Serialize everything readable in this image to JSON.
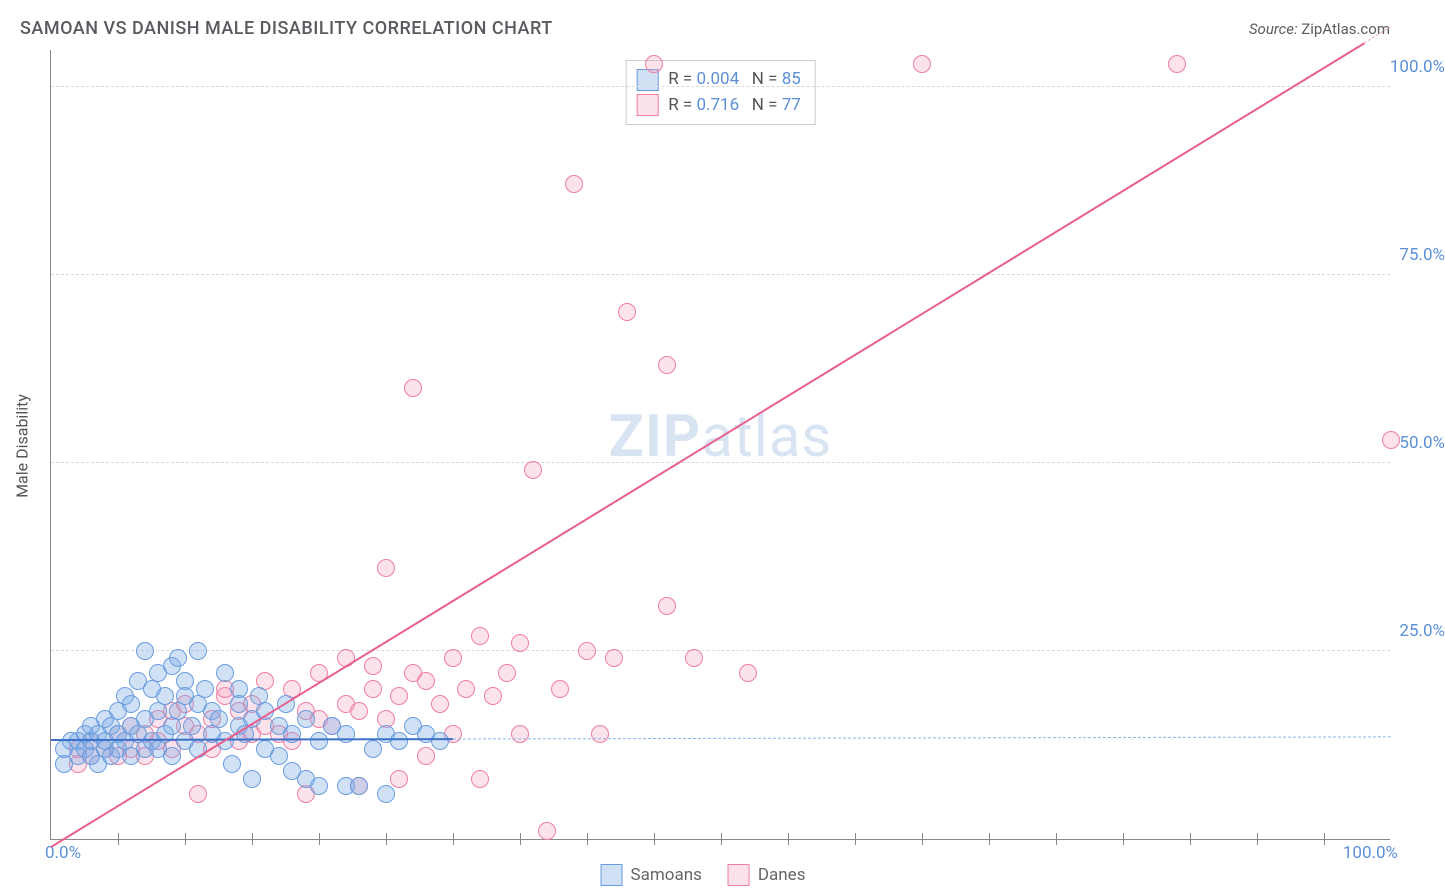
{
  "title": "SAMOAN VS DANISH MALE DISABILITY CORRELATION CHART",
  "source_label": "Source:",
  "source_value": "ZipAtlas.com",
  "y_axis_label": "Male Disability",
  "watermark_bold": "ZIP",
  "watermark_rest": "atlas",
  "chart": {
    "type": "scatter",
    "xlim": [
      0,
      100
    ],
    "ylim": [
      0,
      105
    ],
    "y_ticks": [
      25,
      50,
      75,
      100
    ],
    "y_tick_labels": [
      "25.0%",
      "50.0%",
      "75.0%",
      "100.0%"
    ],
    "x_min_label": "0.0%",
    "x_max_label": "100.0%",
    "x_minor_ticks": [
      5,
      10,
      15,
      20,
      25,
      30,
      35,
      40,
      45,
      50,
      55,
      60,
      65,
      70,
      75,
      80,
      85,
      90,
      95
    ],
    "grid_color": "#d8d8d8",
    "axis_color": "#888888",
    "background_color": "#ffffff",
    "marker_radius": 9,
    "marker_stroke_width": 1.2,
    "series": [
      {
        "name": "Samoans",
        "fill": "rgba(120,170,230,0.35)",
        "stroke": "#6a9de0",
        "r_value": "0.004",
        "n_value": "85",
        "trend": {
          "slope": 0.004,
          "intercept": 13.2,
          "x1": 0,
          "x2": 30,
          "color": "#3b72c8",
          "width": 2.5,
          "dash_ext_color": "#8cb6e8"
        },
        "points": [
          [
            1,
            10
          ],
          [
            1,
            12
          ],
          [
            1.5,
            13
          ],
          [
            2,
            11
          ],
          [
            2,
            13
          ],
          [
            2.5,
            12
          ],
          [
            2.5,
            14
          ],
          [
            3,
            11
          ],
          [
            3,
            13
          ],
          [
            3,
            15
          ],
          [
            3.5,
            10
          ],
          [
            3.5,
            14
          ],
          [
            4,
            12
          ],
          [
            4,
            13
          ],
          [
            4,
            16
          ],
          [
            4.5,
            11
          ],
          [
            4.5,
            15
          ],
          [
            5,
            12
          ],
          [
            5,
            14
          ],
          [
            5,
            17
          ],
          [
            5.5,
            19
          ],
          [
            5.5,
            13
          ],
          [
            6,
            11
          ],
          [
            6,
            15
          ],
          [
            6,
            18
          ],
          [
            6.5,
            14
          ],
          [
            6.5,
            21
          ],
          [
            7,
            12
          ],
          [
            7,
            16
          ],
          [
            7,
            25
          ],
          [
            7.5,
            13
          ],
          [
            7.5,
            20
          ],
          [
            8,
            12
          ],
          [
            8,
            17
          ],
          [
            8,
            22
          ],
          [
            8.5,
            14
          ],
          [
            8.5,
            19
          ],
          [
            9,
            11
          ],
          [
            9,
            15
          ],
          [
            9,
            23
          ],
          [
            9.5,
            17
          ],
          [
            9.5,
            24
          ],
          [
            10,
            13
          ],
          [
            10,
            19
          ],
          [
            10,
            21
          ],
          [
            10.5,
            15
          ],
          [
            11,
            12
          ],
          [
            11,
            18
          ],
          [
            11,
            25
          ],
          [
            11.5,
            20
          ],
          [
            12,
            14
          ],
          [
            12,
            17
          ],
          [
            12.5,
            16
          ],
          [
            13,
            13
          ],
          [
            13,
            22
          ],
          [
            13.5,
            10
          ],
          [
            14,
            15
          ],
          [
            14,
            18
          ],
          [
            14,
            20
          ],
          [
            14.5,
            14
          ],
          [
            15,
            8
          ],
          [
            15,
            16
          ],
          [
            15.5,
            19
          ],
          [
            16,
            12
          ],
          [
            16,
            17
          ],
          [
            17,
            11
          ],
          [
            17,
            15
          ],
          [
            17.5,
            18
          ],
          [
            18,
            9
          ],
          [
            18,
            14
          ],
          [
            19,
            8
          ],
          [
            19,
            16
          ],
          [
            20,
            7
          ],
          [
            20,
            13
          ],
          [
            21,
            15
          ],
          [
            22,
            7
          ],
          [
            22,
            14
          ],
          [
            23,
            7
          ],
          [
            24,
            12
          ],
          [
            25,
            6
          ],
          [
            25,
            14
          ],
          [
            26,
            13
          ],
          [
            27,
            15
          ],
          [
            28,
            14
          ],
          [
            29,
            13
          ]
        ]
      },
      {
        "name": "Danes",
        "fill": "rgba(245,160,185,0.30)",
        "stroke": "#ee7fa2",
        "r_value": "0.716",
        "n_value": "77",
        "trend": {
          "slope": 1.09,
          "intercept": -1,
          "x1": 0,
          "x2": 98,
          "color": "#e85f8d",
          "width": 2.5,
          "dash_ext_color": "#f3a7c1"
        },
        "points": [
          [
            2,
            10
          ],
          [
            2,
            12
          ],
          [
            3,
            11
          ],
          [
            3,
            13
          ],
          [
            4,
            12
          ],
          [
            5,
            11
          ],
          [
            5,
            14
          ],
          [
            6,
            12
          ],
          [
            6,
            15
          ],
          [
            7,
            11
          ],
          [
            7,
            14
          ],
          [
            8,
            13
          ],
          [
            8,
            16
          ],
          [
            9,
            12
          ],
          [
            9,
            17
          ],
          [
            10,
            15
          ],
          [
            10,
            18
          ],
          [
            11,
            6
          ],
          [
            11,
            14
          ],
          [
            12,
            12
          ],
          [
            12,
            16
          ],
          [
            13,
            19
          ],
          [
            13,
            20
          ],
          [
            14,
            13
          ],
          [
            14,
            17
          ],
          [
            15,
            14
          ],
          [
            15,
            18
          ],
          [
            16,
            15
          ],
          [
            16,
            21
          ],
          [
            17,
            14
          ],
          [
            18,
            13
          ],
          [
            18,
            20
          ],
          [
            19,
            6
          ],
          [
            19,
            17
          ],
          [
            20,
            16
          ],
          [
            20,
            22
          ],
          [
            21,
            15
          ],
          [
            22,
            18
          ],
          [
            22,
            24
          ],
          [
            23,
            7
          ],
          [
            23,
            17
          ],
          [
            24,
            20
          ],
          [
            24,
            23
          ],
          [
            25,
            16
          ],
          [
            25,
            36
          ],
          [
            26,
            8
          ],
          [
            26,
            19
          ],
          [
            27,
            22
          ],
          [
            27,
            60
          ],
          [
            28,
            11
          ],
          [
            28,
            21
          ],
          [
            29,
            18
          ],
          [
            30,
            14
          ],
          [
            30,
            24
          ],
          [
            31,
            20
          ],
          [
            32,
            8
          ],
          [
            32,
            27
          ],
          [
            33,
            19
          ],
          [
            34,
            22
          ],
          [
            35,
            14
          ],
          [
            35,
            26
          ],
          [
            36,
            49
          ],
          [
            37,
            1
          ],
          [
            38,
            20
          ],
          [
            39,
            87
          ],
          [
            40,
            25
          ],
          [
            41,
            14
          ],
          [
            42,
            24
          ],
          [
            43,
            70
          ],
          [
            45,
            103
          ],
          [
            46,
            31
          ],
          [
            46,
            63
          ],
          [
            48,
            24
          ],
          [
            52,
            22
          ],
          [
            65,
            103
          ],
          [
            84,
            103
          ],
          [
            100,
            53
          ]
        ]
      }
    ]
  },
  "bottom_legend": [
    {
      "label": "Samoans",
      "fill": "rgba(120,170,230,0.35)",
      "stroke": "#6a9de0"
    },
    {
      "label": "Danes",
      "fill": "rgba(245,160,185,0.30)",
      "stroke": "#ee7fa2"
    }
  ]
}
